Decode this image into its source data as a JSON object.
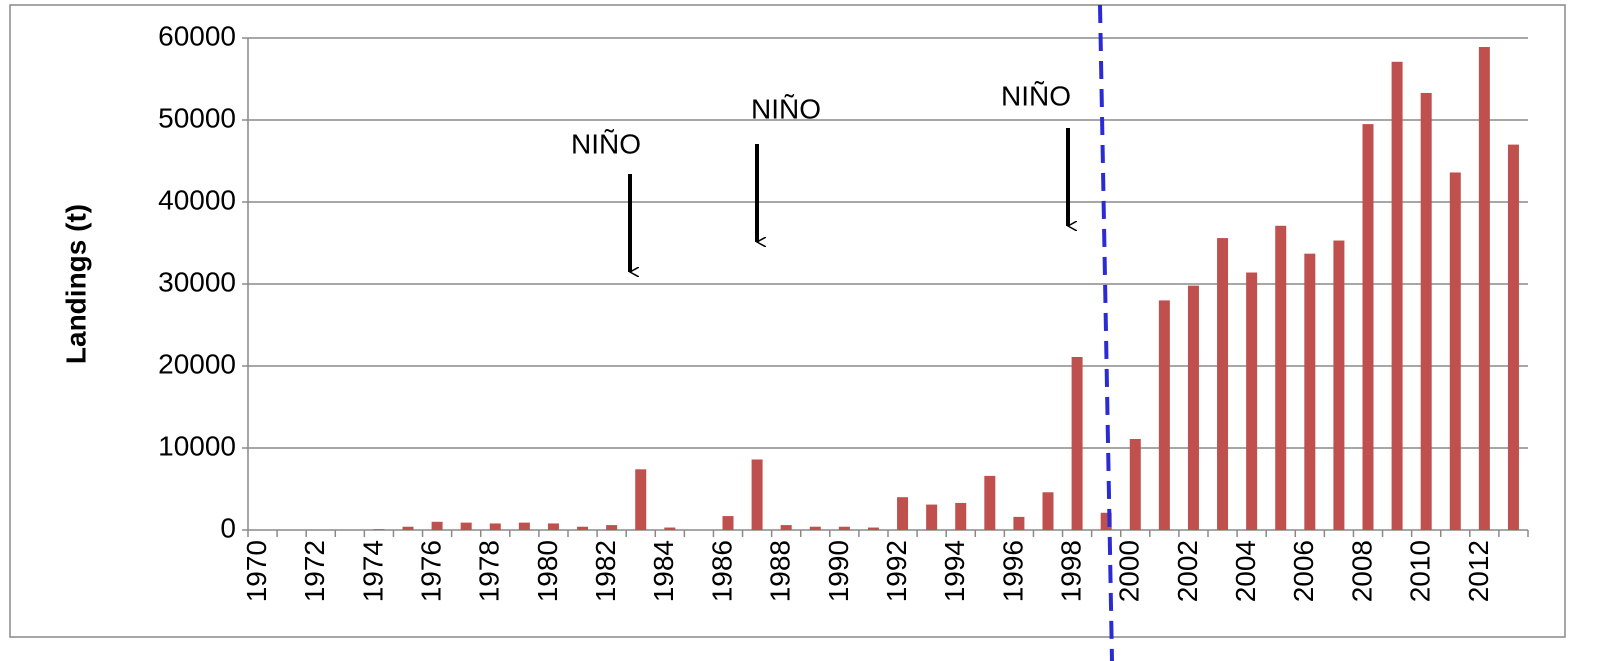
{
  "chart_data": {
    "type": "bar",
    "y_label": "Landings (t)",
    "categories": [
      "1970",
      null,
      "1972",
      null,
      "1974",
      null,
      "1976",
      null,
      "1978",
      null,
      "1980",
      null,
      "1982",
      null,
      "1984",
      null,
      "1986",
      null,
      "1988",
      null,
      "1990",
      null,
      "1992",
      null,
      "1994",
      null,
      "1996",
      null,
      "1998",
      null,
      "2000",
      null,
      "2002",
      null,
      "2004",
      null,
      "2006",
      null,
      "2008",
      null,
      "2010",
      null,
      "2012",
      null
    ],
    "values": [
      0,
      0,
      0,
      0,
      100,
      400,
      1000,
      900,
      800,
      900,
      800,
      400,
      600,
      7400,
      300,
      0,
      1700,
      8600,
      600,
      400,
      400,
      300,
      4000,
      3100,
      3300,
      6600,
      1600,
      4600,
      21100,
      2100,
      11100,
      28000,
      29800,
      35600,
      31400,
      37100,
      33700,
      35300,
      49500,
      57100,
      53300,
      43600,
      58900,
      47000
    ],
    "color": "#c0504d",
    "ylim": [
      0,
      60000
    ],
    "yticks": [
      0,
      10000,
      20000,
      30000,
      40000,
      50000,
      60000
    ],
    "grid": true,
    "annotations": [
      "NIÑO",
      "NIÑO",
      "NIÑO"
    ]
  }
}
